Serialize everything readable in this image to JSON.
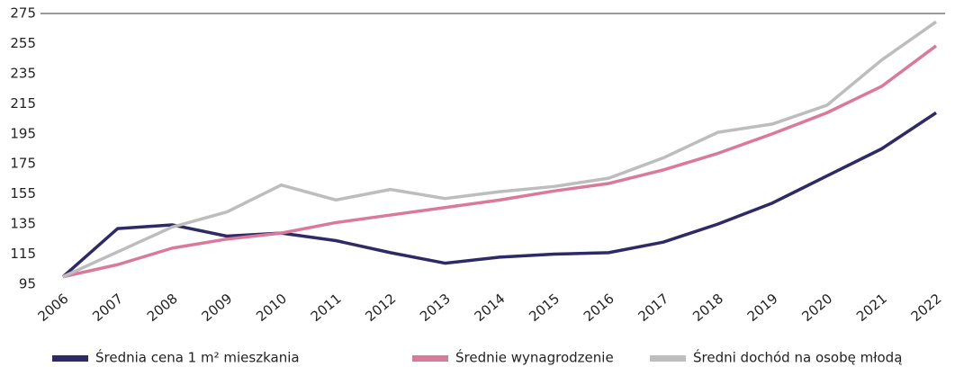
{
  "chart_data": {
    "type": "line",
    "categories": [
      "2006",
      "2007",
      "2008",
      "2009",
      "2010",
      "2011",
      "2012",
      "2013",
      "2014",
      "2015",
      "2016",
      "2017",
      "2018",
      "2019",
      "2020",
      "2021",
      "2022"
    ],
    "series": [
      {
        "name": "Średnia cena 1 m² mieszkania",
        "color": "#2e2a66",
        "values": [
          100,
          132,
          134.5,
          127,
          129,
          124,
          116,
          109,
          113,
          115,
          116,
          123,
          135,
          149,
          167,
          185,
          209
        ]
      },
      {
        "name": "Średnie wynagrodzenie",
        "color": "#d97a9a",
        "values": [
          100,
          108,
          119,
          125,
          129,
          136,
          141,
          146,
          151,
          157,
          162,
          171,
          182,
          195,
          209,
          226.5,
          253.5
        ]
      },
      {
        "name": "Średni dochód na osobę młodą",
        "color": "#bdbdc0",
        "values": [
          100,
          116.5,
          133,
          143,
          161,
          151,
          158,
          152,
          156.5,
          160,
          165.5,
          179,
          196,
          201.5,
          214,
          244,
          269.5
        ]
      }
    ],
    "ylim": [
      95,
      275
    ],
    "yticks": [
      95,
      115,
      135,
      155,
      175,
      195,
      215,
      235,
      255,
      275
    ],
    "grid": false
  }
}
